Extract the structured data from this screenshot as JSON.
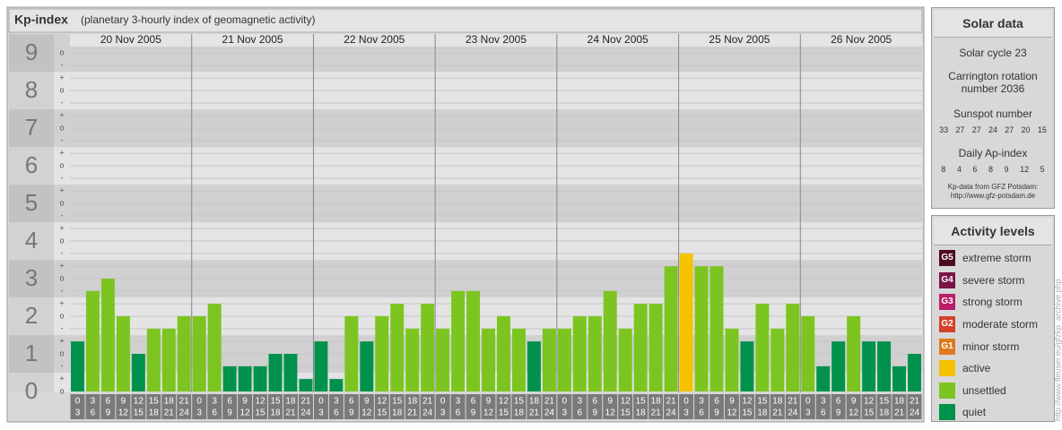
{
  "chart_data": {
    "type": "bar",
    "title": "Kp-index",
    "subtitle": "(planetary 3-hourly index of geomagnetic activity)",
    "ylim": [
      0,
      9.17
    ],
    "yticks": [
      0,
      1,
      2,
      3,
      4,
      5,
      6,
      7,
      8,
      9
    ],
    "minor_yticks": [
      {
        "value": 0,
        "label": "o"
      },
      {
        "value": 0.33,
        "label": "+"
      },
      {
        "value": 0.67,
        "label": "-"
      },
      {
        "value": 1,
        "label": "o"
      },
      {
        "value": 1.33,
        "label": "+"
      },
      {
        "value": 1.67,
        "label": "-"
      },
      {
        "value": 2,
        "label": "o"
      },
      {
        "value": 2.33,
        "label": "+"
      },
      {
        "value": 2.67,
        "label": "-"
      },
      {
        "value": 3,
        "label": "o"
      },
      {
        "value": 3.33,
        "label": "+"
      },
      {
        "value": 3.67,
        "label": "-"
      },
      {
        "value": 4,
        "label": "o"
      },
      {
        "value": 4.33,
        "label": "+"
      },
      {
        "value": 4.67,
        "label": "-"
      },
      {
        "value": 5,
        "label": "o"
      },
      {
        "value": 5.33,
        "label": "+"
      },
      {
        "value": 5.67,
        "label": "-"
      },
      {
        "value": 6,
        "label": "o"
      },
      {
        "value": 6.33,
        "label": "+"
      },
      {
        "value": 6.67,
        "label": "-"
      },
      {
        "value": 7,
        "label": "o"
      },
      {
        "value": 7.33,
        "label": "+"
      },
      {
        "value": 7.67,
        "label": "-"
      },
      {
        "value": 8,
        "label": "o"
      },
      {
        "value": 8.33,
        "label": "+"
      },
      {
        "value": 8.67,
        "label": "-"
      },
      {
        "value": 9,
        "label": "o"
      }
    ],
    "band_colors": [
      "#e4e4e4",
      "#d0d0d0"
    ],
    "slots": [
      {
        "start": 0,
        "end": 3
      },
      {
        "start": 3,
        "end": 6
      },
      {
        "start": 6,
        "end": 9
      },
      {
        "start": 9,
        "end": 12
      },
      {
        "start": 12,
        "end": 15
      },
      {
        "start": 15,
        "end": 18
      },
      {
        "start": 18,
        "end": 21
      },
      {
        "start": 21,
        "end": 24
      }
    ],
    "days": [
      {
        "date": "20 Nov 2005",
        "values": [
          1.33,
          2.67,
          3,
          2,
          1,
          1.67,
          1.67,
          2
        ],
        "colors": [
          "#00924c",
          "#7cc520",
          "#7cc520",
          "#7cc520",
          "#00924c",
          "#7cc520",
          "#7cc520",
          "#7cc520"
        ]
      },
      {
        "date": "21 Nov 2005",
        "values": [
          2,
          2.33,
          0.67,
          0.67,
          0.67,
          1,
          1,
          0.33
        ],
        "colors": [
          "#7cc520",
          "#7cc520",
          "#00924c",
          "#00924c",
          "#00924c",
          "#00924c",
          "#00924c",
          "#00924c"
        ]
      },
      {
        "date": "22 Nov 2005",
        "values": [
          1.33,
          0.33,
          2,
          1.33,
          2,
          2.33,
          1.67,
          2.33
        ],
        "colors": [
          "#00924c",
          "#00924c",
          "#7cc520",
          "#00924c",
          "#7cc520",
          "#7cc520",
          "#7cc520",
          "#7cc520"
        ]
      },
      {
        "date": "23 Nov 2005",
        "values": [
          1.67,
          2.67,
          2.67,
          1.67,
          2,
          1.67,
          1.33,
          1.67
        ],
        "colors": [
          "#7cc520",
          "#7cc520",
          "#7cc520",
          "#7cc520",
          "#7cc520",
          "#7cc520",
          "#00924c",
          "#7cc520"
        ]
      },
      {
        "date": "24 Nov 2005",
        "values": [
          1.67,
          2,
          2,
          2.67,
          1.67,
          2.33,
          2.33,
          3.33
        ],
        "colors": [
          "#7cc520",
          "#7cc520",
          "#7cc520",
          "#7cc520",
          "#7cc520",
          "#7cc520",
          "#7cc520",
          "#7cc520"
        ]
      },
      {
        "date": "25 Nov 2005",
        "values": [
          3.67,
          3.33,
          3.33,
          1.67,
          1.33,
          2.33,
          1.67,
          2.33
        ],
        "colors": [
          "#f6c200",
          "#7cc520",
          "#7cc520",
          "#7cc520",
          "#00924c",
          "#7cc520",
          "#7cc520",
          "#7cc520"
        ]
      },
      {
        "date": "26 Nov 2005",
        "values": [
          2,
          0.67,
          1.33,
          2,
          1.33,
          1.33,
          0.67,
          1
        ],
        "colors": [
          "#7cc520",
          "#00924c",
          "#00924c",
          "#7cc520",
          "#00924c",
          "#00924c",
          "#00924c",
          "#00924c"
        ]
      }
    ]
  },
  "solar_data": {
    "title": "Solar data",
    "cycle": "Solar cycle 23",
    "carrington": [
      "Carrington rotation",
      "number 2036"
    ],
    "sunspot_label": "Sunspot number",
    "sunspots": [
      33,
      27,
      27,
      24,
      27,
      20,
      15
    ],
    "ap_label": "Daily Ap-index",
    "ap": [
      8,
      4,
      6,
      8,
      9,
      12,
      5
    ],
    "source": [
      "Kp-data from GFZ Potsdam:",
      "http://www.gfz-potsdam.de"
    ]
  },
  "activity_levels": {
    "title": "Activity levels",
    "levels": [
      {
        "code": "G5",
        "name": "extreme storm",
        "color": "#4d0a24"
      },
      {
        "code": "G4",
        "name": "severe storm",
        "color": "#7a1448"
      },
      {
        "code": "G3",
        "name": "strong storm",
        "color": "#b81e6a"
      },
      {
        "code": "G2",
        "name": "moderate storm",
        "color": "#d4402a"
      },
      {
        "code": "G1",
        "name": "minor storm",
        "color": "#e07a1e"
      },
      {
        "name": "active",
        "color": "#f6c200"
      },
      {
        "name": "unsettled",
        "color": "#7cc520"
      },
      {
        "name": "quiet",
        "color": "#00924c"
      }
    ]
  },
  "credit": "http://www.fleuser.eu/gfzkp_archive.php"
}
